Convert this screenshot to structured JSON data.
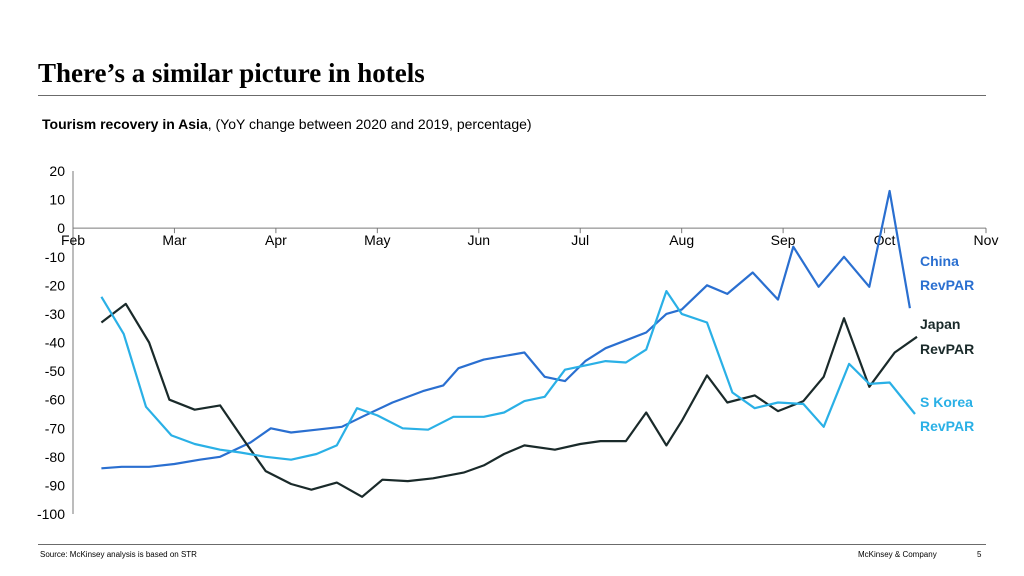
{
  "header": {
    "title": "There’s a similar picture in hotels",
    "subtitle_bold": "Tourism recovery in Asia",
    "subtitle_rest": ", (YoY change between 2020 and 2019, percentage)"
  },
  "footer": {
    "source": "Source: McKinsey analysis is based on STR",
    "company": "McKinsey & Company",
    "page_number": "5"
  },
  "chart_data": {
    "type": "line",
    "title": "",
    "xlabel": "",
    "ylabel": "",
    "ylim": [
      -100,
      20
    ],
    "yticks": [
      20,
      10,
      0,
      -10,
      -20,
      -30,
      -40,
      -50,
      -60,
      -70,
      -80,
      -90,
      -100
    ],
    "xlim": [
      0,
      9
    ],
    "x_ticks": [
      {
        "pos": 0,
        "label": "Feb"
      },
      {
        "pos": 1,
        "label": "Mar"
      },
      {
        "pos": 2,
        "label": "Apr"
      },
      {
        "pos": 3,
        "label": "May"
      },
      {
        "pos": 4,
        "label": "Jun"
      },
      {
        "pos": 5,
        "label": "Jul"
      },
      {
        "pos": 6,
        "label": "Aug"
      },
      {
        "pos": 7,
        "label": "Sep"
      },
      {
        "pos": 8,
        "label": "Oct"
      },
      {
        "pos": 9,
        "label": "Nov"
      }
    ],
    "grid": false,
    "legend": "direct labels at right end of lines",
    "series": [
      {
        "name": "China RevPAR",
        "label_lines": [
          "China",
          "RevPAR"
        ],
        "color": "#2a6fd0",
        "x": [
          0.28,
          0.48,
          0.75,
          1.0,
          1.25,
          1.45,
          1.75,
          1.95,
          2.15,
          2.4,
          2.65,
          2.85,
          3.15,
          3.45,
          3.65,
          3.8,
          4.05,
          4.45,
          4.65,
          4.85,
          5.05,
          5.25,
          5.65,
          5.85,
          6.0,
          6.25,
          6.45,
          6.7,
          6.95,
          7.1,
          7.35,
          7.6,
          7.85,
          8.05,
          8.25
        ],
        "y": [
          -84,
          -83.5,
          -83.5,
          -82.5,
          -81,
          -80,
          -75,
          -70,
          -71.5,
          -70.5,
          -69.5,
          -66,
          -61,
          -57,
          -55,
          -49,
          -46,
          -43.5,
          -52,
          -53.5,
          -46.5,
          -42,
          -36.5,
          -30,
          -28.5,
          -20,
          -23,
          -15.5,
          -25,
          -6.5,
          -20.5,
          -10,
          -20.5,
          13,
          -28
        ]
      },
      {
        "name": "Japan RevPAR",
        "label_lines": [
          "Japan",
          "RevPAR"
        ],
        "color": "#1a2a2a",
        "x": [
          0.28,
          0.52,
          0.75,
          0.95,
          1.2,
          1.45,
          1.7,
          1.9,
          2.15,
          2.35,
          2.6,
          2.85,
          3.05,
          3.3,
          3.55,
          3.85,
          4.05,
          4.25,
          4.45,
          4.75,
          5.0,
          5.2,
          5.45,
          5.65,
          5.85,
          6.0,
          6.25,
          6.45,
          6.72,
          6.95,
          7.2,
          7.4,
          7.6,
          7.85,
          8.1,
          8.32
        ],
        "y": [
          -33,
          -26.5,
          -40,
          -60,
          -63.5,
          -62,
          -75,
          -85,
          -89.5,
          -91.5,
          -89,
          -94,
          -88,
          -88.5,
          -87.5,
          -85.5,
          -83,
          -79,
          -76,
          -77.5,
          -75.5,
          -74.5,
          -74.5,
          -64.5,
          -76,
          -67.5,
          -51.5,
          -61,
          -58.5,
          -64,
          -60.5,
          -52,
          -31.5,
          -55.5,
          -43.5,
          -38
        ]
      },
      {
        "name": "S Korea RevPAR",
        "label_lines": [
          "S Korea",
          "RevPAR"
        ],
        "color": "#2ab0e6",
        "x": [
          0.28,
          0.5,
          0.72,
          0.97,
          1.2,
          1.45,
          1.65,
          1.9,
          2.15,
          2.4,
          2.6,
          2.8,
          3.0,
          3.25,
          3.5,
          3.75,
          4.05,
          4.25,
          4.45,
          4.65,
          4.85,
          5.05,
          5.25,
          5.45,
          5.65,
          5.85,
          6.0,
          6.25,
          6.5,
          6.72,
          6.95,
          7.2,
          7.4,
          7.65,
          7.85,
          8.05,
          8.3
        ],
        "y": [
          -24,
          -37,
          -62.5,
          -72.5,
          -75.5,
          -77.5,
          -78.5,
          -80,
          -81,
          -79,
          -76,
          -63,
          -65.5,
          -70,
          -70.5,
          -66,
          -66,
          -64.5,
          -60.5,
          -59,
          -49.5,
          -48,
          -46.5,
          -47,
          -42.5,
          -22,
          -30,
          -33,
          -57.5,
          -63,
          -61,
          -61.5,
          -69.5,
          -47.5,
          -54.5,
          -54,
          -65
        ]
      }
    ]
  }
}
